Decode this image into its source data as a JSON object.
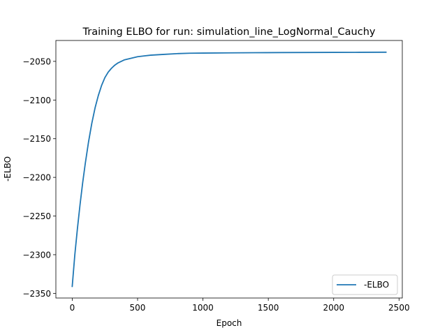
{
  "chart_data": {
    "type": "line",
    "title": "Training ELBO for run: simulation_line_LogNormal_Cauchy",
    "xlabel": "Epoch",
    "ylabel": "-ELBO",
    "xlim": [
      -125,
      2525
    ],
    "ylim": [
      -2356,
      -2023
    ],
    "x_ticks": [
      0,
      500,
      1000,
      1500,
      2000,
      2500
    ],
    "y_ticks": [
      -2350,
      -2300,
      -2250,
      -2200,
      -2150,
      -2100,
      -2050
    ],
    "x_tick_labels": [
      "0",
      "500",
      "1000",
      "1500",
      "2000",
      "2500"
    ],
    "y_tick_labels": [
      "−2350",
      "−2300",
      "−2250",
      "−2200",
      "−2150",
      "−2100",
      "−2050"
    ],
    "grid": false,
    "legend_position": "lower right",
    "series": [
      {
        "name": "-ELBO",
        "color": "#1f77b4",
        "x": [
          0,
          20,
          40,
          60,
          80,
          100,
          125,
          150,
          175,
          200,
          225,
          250,
          275,
          300,
          325,
          350,
          375,
          400,
          450,
          500,
          550,
          600,
          700,
          800,
          900,
          1000,
          1200,
          1400,
          1600,
          1800,
          2000,
          2200,
          2400
        ],
        "y": [
          -2341,
          -2300,
          -2266,
          -2235,
          -2207,
          -2182,
          -2154,
          -2130,
          -2110,
          -2094,
          -2081,
          -2071,
          -2064,
          -2059,
          -2055,
          -2052,
          -2050,
          -2048,
          -2046,
          -2044,
          -2043,
          -2042,
          -2041,
          -2040,
          -2039.5,
          -2039.3,
          -2039,
          -2038.8,
          -2038.6,
          -2038.5,
          -2038.4,
          -2038.3,
          -2038.2
        ]
      }
    ]
  }
}
